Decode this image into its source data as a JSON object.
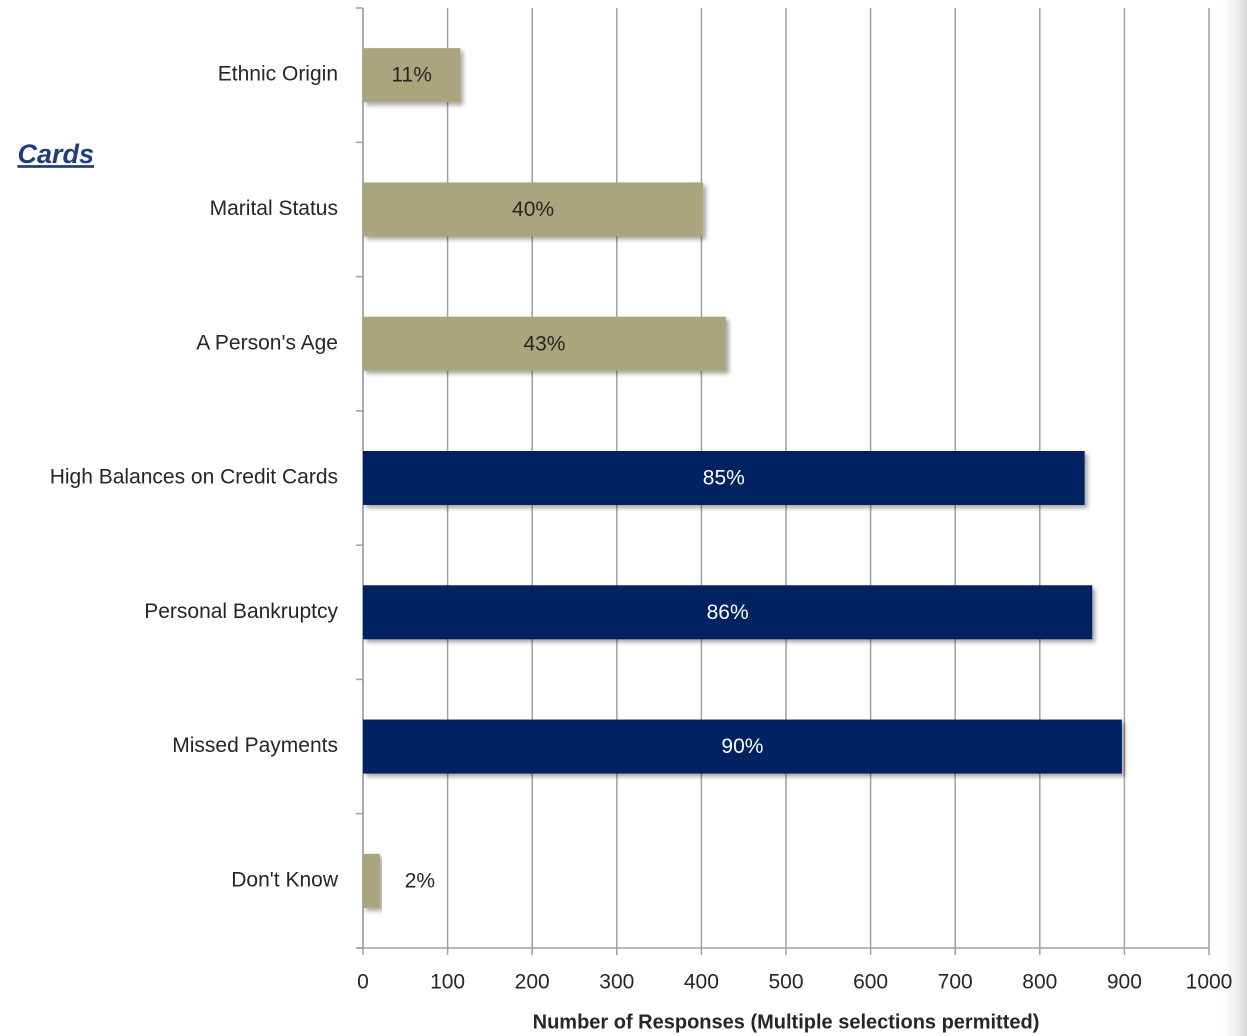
{
  "chart_data": {
    "type": "barh",
    "title": "Cards",
    "categories": [
      "Ethnic Origin",
      "Marital Status",
      "A Person's Age",
      "High Balances on Credit Cards",
      "Personal Bankruptcy",
      "Missed Payments",
      "Don't Know"
    ],
    "values": [
      115,
      402,
      429,
      853,
      862,
      897,
      20
    ],
    "percent_labels": [
      "11%",
      "40%",
      "43%",
      "85%",
      "86%",
      "90%",
      "2%"
    ],
    "colors": [
      "#a9a67e",
      "#a9a67e",
      "#a9a67e",
      "#002060",
      "#002060",
      "#002060",
      "#a9a67e"
    ],
    "xlabel": "Number of Responses (Multiple selections permitted)",
    "xlim": [
      0,
      1000
    ],
    "xticks": [
      0,
      100,
      200,
      300,
      400,
      500,
      600,
      700,
      800,
      900,
      1000
    ],
    "grid": true
  }
}
